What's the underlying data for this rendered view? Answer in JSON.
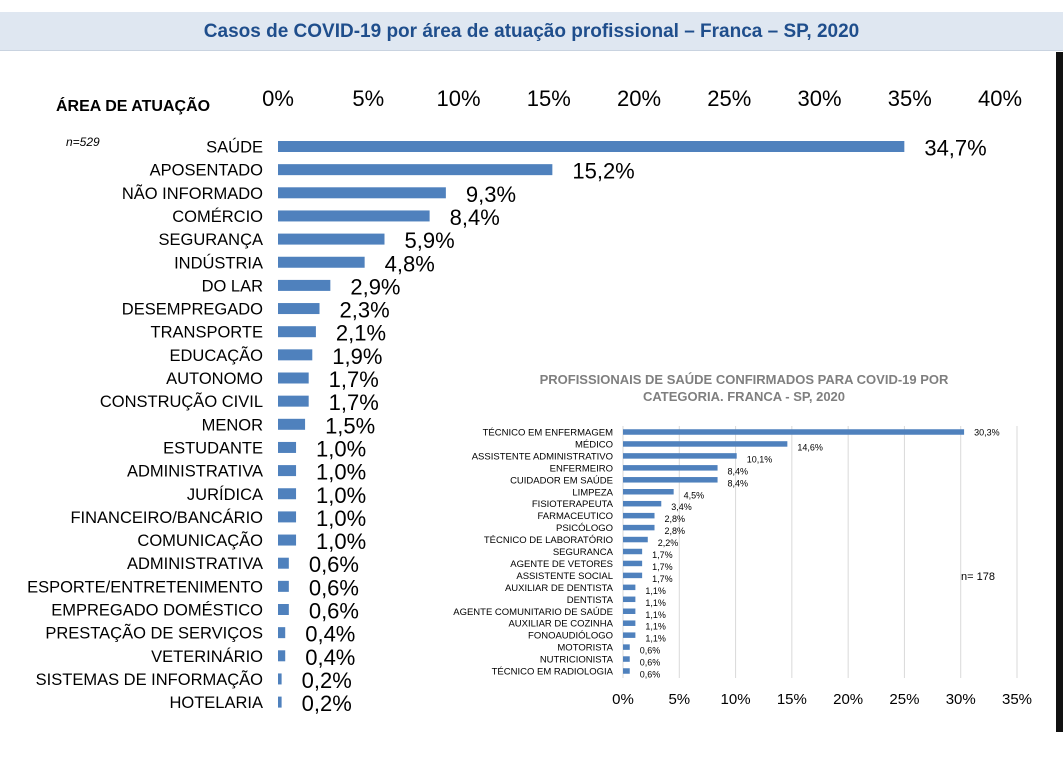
{
  "header": {
    "title": "Casos de COVID-19 por área de atuação profissional – Franca – SP, 2020"
  },
  "colors": {
    "bar": "#4f81bd",
    "title": "#1f4e8c",
    "band": "#dfe7f1"
  },
  "chart_data": [
    {
      "type": "bar",
      "orientation": "horizontal",
      "title": "",
      "category_header": "ÁREA DE ATUAÇÃO",
      "note": "n=529",
      "xlim": [
        0,
        40
      ],
      "x_ticks": [
        "0%",
        "5%",
        "10%",
        "15%",
        "20%",
        "25%",
        "30%",
        "35%",
        "40%"
      ],
      "categories": [
        "SAÚDE",
        "APOSENTADO",
        "NÃO INFORMADO",
        "COMÉRCIO",
        "SEGURANÇA",
        "INDÚSTRIA",
        "DO LAR",
        "DESEMPREGADO",
        "TRANSPORTE",
        "EDUCAÇÃO",
        "AUTONOMO",
        "CONSTRUÇÃO CIVIL",
        "MENOR",
        "ESTUDANTE",
        "ADMINISTRATIVA",
        "JURÍDICA",
        "FINANCEIRO/BANCÁRIO",
        "COMUNICAÇÃO",
        "ADMINISTRATIVA",
        "ESPORTE/ENTRETENIMENTO",
        "EMPREGADO DOMÉSTICO",
        "PRESTAÇÃO DE SERVIÇOS",
        "VETERINÁRIO",
        "SISTEMAS DE INFORMAÇÃO",
        "HOTELARIA"
      ],
      "values": [
        34.7,
        15.2,
        9.3,
        8.4,
        5.9,
        4.8,
        2.9,
        2.3,
        2.1,
        1.9,
        1.7,
        1.7,
        1.5,
        1.0,
        1.0,
        1.0,
        1.0,
        1.0,
        0.6,
        0.6,
        0.6,
        0.4,
        0.4,
        0.2,
        0.2
      ],
      "labels": [
        "34,7%",
        "15,2%",
        "9,3%",
        "8,4%",
        "5,9%",
        "4,8%",
        "2,9%",
        "2,3%",
        "2,1%",
        "1,9%",
        "1,7%",
        "1,7%",
        "1,5%",
        "1,0%",
        "1,0%",
        "1,0%",
        "1,0%",
        "1,0%",
        "0,6%",
        "0,6%",
        "0,6%",
        "0,4%",
        "0,4%",
        "0,2%",
        "0,2%"
      ],
      "grid": false
    },
    {
      "type": "bar",
      "orientation": "horizontal",
      "title": "PROFISSIONAIS DE SAÚDE CONFIRMADOS PARA COVID-19 POR CATEGORIA. FRANCA - SP, 2020",
      "title_lines": [
        "PROFISSIONAIS DE SAÚDE CONFIRMADOS PARA COVID-19 POR",
        "CATEGORIA. FRANCA - SP, 2020"
      ],
      "note": "n= 178",
      "xlim": [
        0,
        35
      ],
      "x_ticks": [
        "0%",
        "5%",
        "10%",
        "15%",
        "20%",
        "25%",
        "30%",
        "35%"
      ],
      "categories": [
        "TÉCNICO EM ENFERMAGEM",
        "MÉDICO",
        "ASSISTENTE ADMINISTRATIVO",
        "ENFERMEIRO",
        "CUIDADOR EM SAÚDE",
        "LIMPEZA",
        "FISIOTERAPEUTA",
        "FARMACEUTICO",
        "PSICÓLOGO",
        "TÉCNICO DE LABORATÓRIO",
        "SEGURANCA",
        "AGENTE DE VETORES",
        "ASSISTENTE SOCIAL",
        "AUXILIAR DE DENTISTA",
        "DENTISTA",
        "AGENTE COMUNITARIO DE SAÚDE",
        "AUXILIAR DE COZINHA",
        "FONOAUDIÓLOGO",
        "MOTORISTA",
        "NUTRICIONISTA",
        "TÉCNICO EM RADIOLOGIA"
      ],
      "values": [
        30.3,
        14.6,
        10.1,
        8.4,
        8.4,
        4.5,
        3.4,
        2.8,
        2.8,
        2.2,
        1.7,
        1.7,
        1.7,
        1.1,
        1.1,
        1.1,
        1.1,
        1.1,
        0.6,
        0.6,
        0.6
      ],
      "labels": [
        "30,3%",
        "14,6%",
        "10,1%",
        "8,4%",
        "8,4%",
        "4,5%",
        "3,4%",
        "2,8%",
        "2,8%",
        "2,2%",
        "1,7%",
        "1,7%",
        "1,7%",
        "1,1%",
        "1,1%",
        "1,1%",
        "1,1%",
        "1,1%",
        "0,6%",
        "0,6%",
        "0,6%"
      ],
      "grid": true
    }
  ]
}
